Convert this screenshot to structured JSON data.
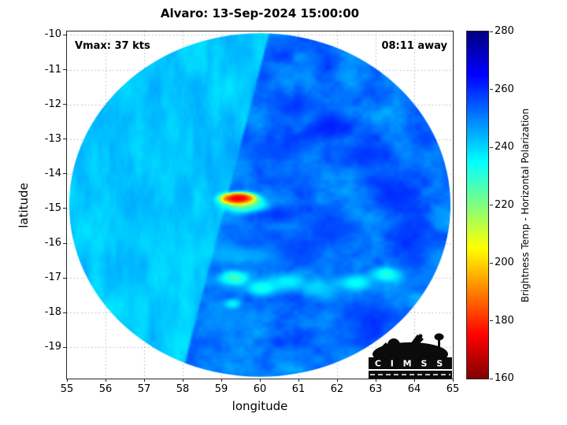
{
  "figure": {
    "title": "Alvaro: 13-Sep-2024 15:00:00",
    "annotation_left": "Vmax: 37 kts",
    "annotation_right": "08:11 away",
    "logo_text": "C I M S S"
  },
  "colors": {
    "background": "#ffffff",
    "grid": "#b5b5b5",
    "frame": "#262626",
    "text": "#000000",
    "logo": "#0b0b0b"
  },
  "chart_data": {
    "type": "heatmap",
    "title": "Alvaro: 13-Sep-2024 15:00:00",
    "xlabel": "longitude",
    "ylabel": "latitude",
    "xlim": [
      55,
      65
    ],
    "ylim": [
      -19.9,
      -9.9
    ],
    "xticks": [
      55,
      56,
      57,
      58,
      59,
      60,
      61,
      62,
      63,
      64,
      65
    ],
    "yticks": [
      -10,
      -11,
      -12,
      -13,
      -14,
      -15,
      -16,
      -17,
      -18,
      -19
    ],
    "grid": true,
    "grid_style": "dotted",
    "annotations": [
      "Vmax: 37 kts",
      "08:11 away"
    ],
    "colorbar": {
      "label": "Brightness Temp - Horizontal Polarization",
      "min": 160,
      "max": 280,
      "ticks": [
        160,
        180,
        200,
        220,
        240,
        260,
        280
      ],
      "colormap": "jet-reversed",
      "position": "right"
    },
    "swath": {
      "shape": "ellipse",
      "center_lon": 60.0,
      "center_lat": -14.9,
      "rx_deg": 4.94,
      "ry_deg": 4.95,
      "seam": {
        "top_lon": 60.0,
        "top_lat": -11.0,
        "bottom_lon": 58.0,
        "bottom_lat": -19.7
      },
      "left_base_temp": 241.5,
      "left_noise_amp": 5,
      "right_base_temp": 251,
      "right_noise_amp": 9
    },
    "features_format": [
      "lon",
      "lat",
      "radius_lon_deg",
      "radius_lat_deg",
      "brightness_temp_K",
      "weight"
    ],
    "features": [
      [
        59.45,
        -14.72,
        0.28,
        0.11,
        162,
        9
      ],
      [
        59.62,
        -14.88,
        0.4,
        0.18,
        203,
        2.2
      ],
      [
        59.95,
        -14.95,
        0.28,
        0.12,
        228,
        1.4
      ],
      [
        60.35,
        -15.15,
        0.55,
        0.22,
        264,
        1.6
      ],
      [
        59.9,
        -15.95,
        0.8,
        0.28,
        256,
        0.9
      ],
      [
        59.5,
        -16.35,
        0.85,
        0.25,
        234,
        1.1
      ],
      [
        58.75,
        -16.05,
        0.5,
        0.3,
        237,
        0.9
      ],
      [
        59.35,
        -17.0,
        0.28,
        0.16,
        217,
        2.0
      ],
      [
        60.05,
        -17.3,
        0.32,
        0.16,
        221,
        1.7
      ],
      [
        60.7,
        -17.12,
        0.36,
        0.18,
        227,
        1.4
      ],
      [
        61.55,
        -17.3,
        0.42,
        0.2,
        231,
        1.1
      ],
      [
        62.5,
        -17.15,
        0.32,
        0.18,
        223,
        1.5
      ],
      [
        63.25,
        -16.9,
        0.3,
        0.16,
        221,
        1.5
      ],
      [
        59.3,
        -17.75,
        0.18,
        0.12,
        222,
        1.4
      ],
      [
        59.0,
        -18.25,
        0.7,
        0.5,
        241,
        0.9
      ],
      [
        61.9,
        -12.7,
        0.55,
        0.3,
        268,
        1.8
      ],
      [
        62.85,
        -13.45,
        0.45,
        0.28,
        266,
        1.5
      ],
      [
        63.5,
        -14.6,
        0.4,
        0.45,
        267,
        1.6
      ],
      [
        61.0,
        -12.05,
        0.55,
        0.27,
        263,
        1.2
      ],
      [
        60.55,
        -13.3,
        0.75,
        0.3,
        260,
        1.0
      ],
      [
        63.95,
        -15.8,
        0.45,
        0.55,
        265,
        1.4
      ],
      [
        62.05,
        -15.6,
        0.65,
        0.35,
        261,
        1.0
      ],
      [
        62.9,
        -18.2,
        0.85,
        0.45,
        263,
        1.2
      ],
      [
        61.1,
        -16.2,
        0.5,
        0.3,
        258,
        0.9
      ],
      [
        60.9,
        -14.2,
        0.6,
        0.35,
        259,
        0.9
      ]
    ]
  }
}
